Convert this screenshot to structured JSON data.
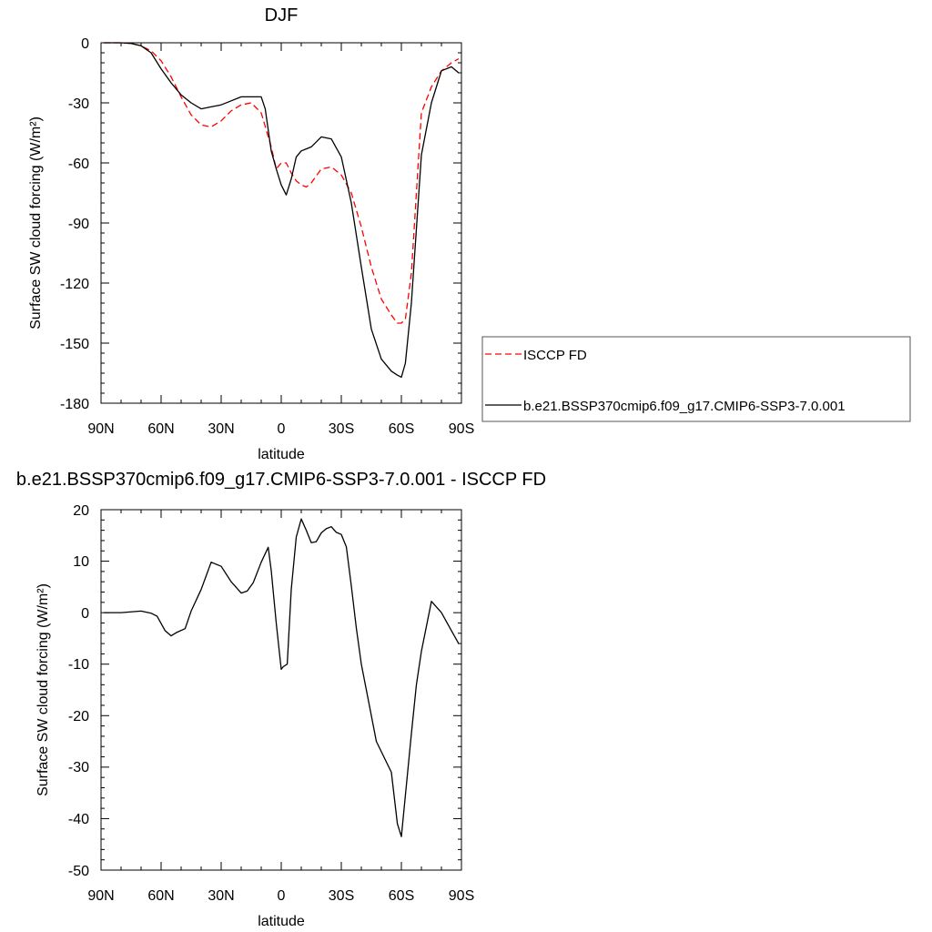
{
  "chart_data": [
    {
      "type": "line",
      "title": "DJF",
      "xlabel": "latitude",
      "ylabel": "Surface SW cloud forcing (W/m²)",
      "x_ticks": [
        "90N",
        "60N",
        "30N",
        "0",
        "30S",
        "60S",
        "90S"
      ],
      "x_tick_values": [
        -90,
        -60,
        -30,
        0,
        30,
        60,
        90
      ],
      "xlim": [
        -90,
        90
      ],
      "ylim": [
        -180,
        0
      ],
      "y_ticks": [
        "0",
        "-30",
        "-60",
        "-90",
        "-120",
        "-150",
        "-180"
      ],
      "y_tick_values": [
        0,
        -30,
        -60,
        -90,
        -120,
        -150,
        -180
      ],
      "legend_position": "right",
      "series": [
        {
          "name": "ISCCP FD",
          "color": "#ff0000",
          "style": "dashed",
          "x": [
            -88.6,
            -85,
            -80,
            -75,
            -70,
            -65,
            -60,
            -55,
            -50,
            -45,
            -40,
            -35,
            -30,
            -25,
            -20,
            -15,
            -10,
            -5,
            -2.5,
            0,
            2.5,
            5,
            7.5,
            10,
            12.5,
            15,
            20,
            25,
            30,
            35,
            40,
            45,
            50,
            55,
            58,
            60,
            62,
            65,
            70,
            75,
            80,
            85,
            88.6
          ],
          "values": [
            0,
            0,
            0,
            -0.3,
            -1.5,
            -4,
            -9,
            -17,
            -27,
            -36,
            -41,
            -42,
            -39,
            -34,
            -31,
            -30,
            -35,
            -52,
            -63,
            -60,
            -60,
            -65,
            -69,
            -71,
            -72,
            -70,
            -63,
            -62,
            -66,
            -75,
            -92,
            -112,
            -128,
            -136,
            -140,
            -140,
            -138,
            -115,
            -35,
            -22,
            -14,
            -10,
            -8
          ]
        },
        {
          "name": "b.e21.BSSP370cmip6.f09_g17.CMIP6-SSP3-7.0.001",
          "color": "#000000",
          "style": "solid",
          "x": [
            -88.6,
            -85,
            -80,
            -75,
            -70,
            -65,
            -60,
            -55,
            -50,
            -45,
            -40,
            -35,
            -30,
            -25,
            -20,
            -15,
            -10,
            -8,
            -5,
            -2.5,
            0,
            2.5,
            5,
            7.5,
            10,
            12.5,
            15,
            20,
            25,
            30,
            35,
            40,
            45,
            50,
            55,
            58,
            60,
            62,
            65,
            70,
            75,
            80,
            85,
            88.6
          ],
          "values": [
            0,
            0,
            0,
            -0.3,
            -1.5,
            -5,
            -13,
            -20,
            -26,
            -30,
            -33,
            -32,
            -31,
            -29,
            -27,
            -27,
            -27,
            -33,
            -54,
            -63,
            -71,
            -76,
            -68,
            -57,
            -54,
            -53,
            -52,
            -47,
            -48,
            -57,
            -80,
            -112,
            -143,
            -158,
            -164,
            -166,
            -167,
            -160,
            -130,
            -56,
            -30,
            -14,
            -12,
            -15
          ]
        }
      ]
    },
    {
      "type": "line",
      "title": "b.e21.BSSP370cmip6.f09_g17.CMIP6-SSP3-7.0.001 - ISCCP FD",
      "xlabel": "latitude",
      "ylabel": "Surface SW cloud forcing (W/m²)",
      "x_ticks": [
        "90N",
        "60N",
        "30N",
        "0",
        "30S",
        "60S",
        "90S"
      ],
      "x_tick_values": [
        -90,
        -60,
        -30,
        0,
        30,
        60,
        90
      ],
      "xlim": [
        -90,
        90
      ],
      "ylim": [
        -50,
        20
      ],
      "y_ticks": [
        "20",
        "10",
        "0",
        "-10",
        "-20",
        "-30",
        "-40",
        "-50"
      ],
      "y_tick_values": [
        20,
        10,
        0,
        -10,
        -20,
        -30,
        -40,
        -50
      ],
      "series": [
        {
          "color": "#000000",
          "style": "solid",
          "x": [
            -88.6,
            -80,
            -70,
            -65,
            -62,
            -58,
            -55,
            -52,
            -48,
            -45,
            -40,
            -35,
            -30,
            -25,
            -20,
            -17,
            -14,
            -10,
            -6.5,
            -5,
            -2.5,
            0,
            1,
            3,
            5,
            7.5,
            10,
            12.5,
            15,
            17.5,
            20,
            22.5,
            25,
            27.5,
            30,
            32.5,
            35,
            37.5,
            40,
            42.5,
            45,
            47.5,
            50,
            55,
            58,
            60,
            62.5,
            65,
            67.5,
            70,
            75,
            80,
            85,
            88.6
          ],
          "values": [
            0,
            0,
            0.3,
            -0.1,
            -0.7,
            -3.5,
            -4.5,
            -3.8,
            -3.1,
            0.3,
            4.5,
            9.8,
            9,
            6,
            3.8,
            4.2,
            5.8,
            9.8,
            12.7,
            8.2,
            -2,
            -11,
            -10.5,
            -10,
            4.5,
            14.7,
            18.2,
            16,
            13.6,
            13.8,
            15.5,
            16.3,
            16.7,
            15.6,
            15.2,
            12.8,
            5.2,
            -3,
            -10,
            -15,
            -20,
            -25,
            -27,
            -31,
            -41,
            -43.5,
            -33.5,
            -23.5,
            -14,
            -7.5,
            2.2,
            0,
            -3.5,
            -6
          ]
        }
      ]
    }
  ]
}
